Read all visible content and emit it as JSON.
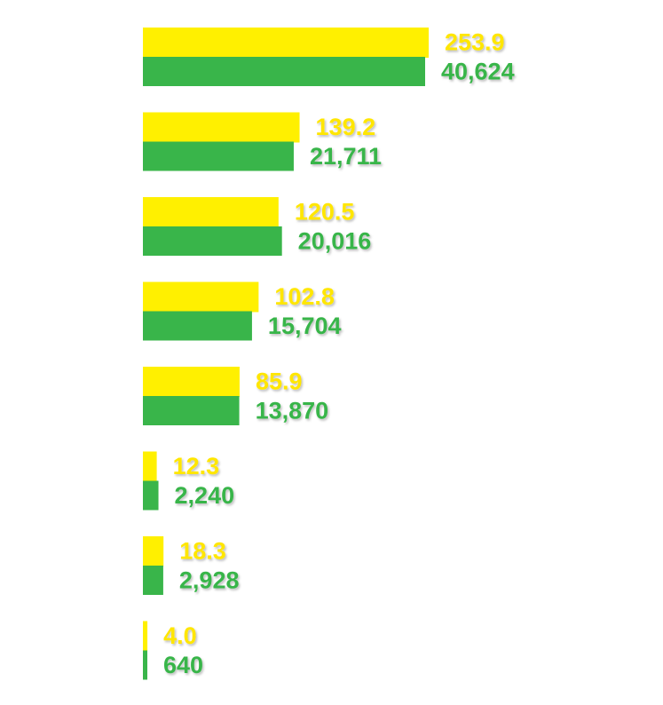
{
  "chart_data": {
    "type": "bar",
    "orientation": "horizontal",
    "categories": [
      "",
      "",
      "",
      "",
      "",
      "",
      "",
      ""
    ],
    "series": [
      {
        "color": "#FFF000",
        "values": [
          253.9,
          139.2,
          120.5,
          102.8,
          85.9,
          12.3,
          18.3,
          4.0
        ],
        "labels": [
          "253.9",
          "139.2",
          "120.5",
          "102.8",
          "85.9",
          "12.3",
          "18.3",
          "4.0"
        ]
      },
      {
        "color": "#39B54A",
        "values": [
          40624,
          21711,
          20016,
          15704,
          13870,
          2240,
          2928,
          640
        ],
        "labels": [
          "40,624",
          "21,711",
          "20,016",
          "15,704",
          "13,870",
          "2,240",
          "2,928",
          "640"
        ]
      }
    ],
    "label_colors": [
      "#FFE600",
      "#39B54A"
    ],
    "grid": false,
    "legend": "none"
  }
}
